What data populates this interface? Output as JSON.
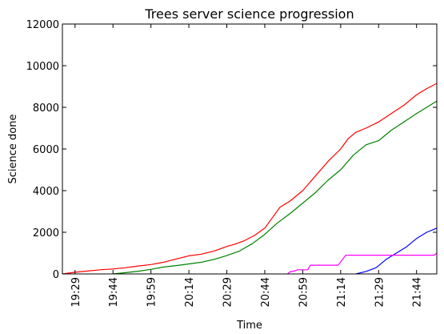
{
  "chart_data": {
    "type": "line",
    "title": "Trees server science progression",
    "xlabel": "Time",
    "ylabel": "Science done",
    "ylim": [
      0,
      12000
    ],
    "yticks": [
      0,
      2000,
      4000,
      6000,
      8000,
      10000,
      12000
    ],
    "xlim": [
      "19:24",
      "21:52"
    ],
    "xticks": [
      "19:29",
      "19:44",
      "19:59",
      "20:14",
      "20:29",
      "20:44",
      "20:59",
      "21:14",
      "21:29",
      "21:44"
    ],
    "grid": false,
    "series": [
      {
        "color": "#ff0000",
        "points": [
          [
            "19:24",
            0
          ],
          [
            "19:29",
            80
          ],
          [
            "19:34",
            140
          ],
          [
            "19:39",
            200
          ],
          [
            "19:44",
            240
          ],
          [
            "19:49",
            300
          ],
          [
            "19:54",
            380
          ],
          [
            "19:59",
            450
          ],
          [
            "20:04",
            560
          ],
          [
            "20:09",
            720
          ],
          [
            "20:14",
            870
          ],
          [
            "20:19",
            950
          ],
          [
            "20:24",
            1100
          ],
          [
            "20:29",
            1320
          ],
          [
            "20:32",
            1420
          ],
          [
            "20:36",
            1600
          ],
          [
            "20:40",
            1850
          ],
          [
            "20:44",
            2200
          ],
          [
            "20:47",
            2700
          ],
          [
            "20:50",
            3200
          ],
          [
            "20:54",
            3500
          ],
          [
            "20:59",
            4000
          ],
          [
            "21:04",
            4700
          ],
          [
            "21:09",
            5400
          ],
          [
            "21:14",
            6000
          ],
          [
            "21:17",
            6500
          ],
          [
            "21:20",
            6800
          ],
          [
            "21:24",
            7000
          ],
          [
            "21:29",
            7300
          ],
          [
            "21:34",
            7700
          ],
          [
            "21:39",
            8100
          ],
          [
            "21:44",
            8600
          ],
          [
            "21:48",
            8900
          ],
          [
            "21:52",
            9150
          ]
        ]
      },
      {
        "color": "#008000",
        "points": [
          [
            "19:44",
            0
          ],
          [
            "19:49",
            60
          ],
          [
            "19:54",
            130
          ],
          [
            "19:59",
            220
          ],
          [
            "20:04",
            330
          ],
          [
            "20:09",
            400
          ],
          [
            "20:14",
            480
          ],
          [
            "20:19",
            560
          ],
          [
            "20:24",
            700
          ],
          [
            "20:29",
            880
          ],
          [
            "20:34",
            1100
          ],
          [
            "20:39",
            1450
          ],
          [
            "20:44",
            1900
          ],
          [
            "20:49",
            2450
          ],
          [
            "20:54",
            2900
          ],
          [
            "20:59",
            3400
          ],
          [
            "21:04",
            3900
          ],
          [
            "21:09",
            4500
          ],
          [
            "21:14",
            5000
          ],
          [
            "21:19",
            5700
          ],
          [
            "21:24",
            6200
          ],
          [
            "21:29",
            6400
          ],
          [
            "21:34",
            6900
          ],
          [
            "21:39",
            7300
          ],
          [
            "21:44",
            7700
          ],
          [
            "21:48",
            8000
          ],
          [
            "21:52",
            8300
          ]
        ]
      },
      {
        "color": "#0000ff",
        "points": [
          [
            "21:20",
            0
          ],
          [
            "21:24",
            120
          ],
          [
            "21:28",
            300
          ],
          [
            "21:32",
            700
          ],
          [
            "21:36",
            1000
          ],
          [
            "21:40",
            1300
          ],
          [
            "21:44",
            1700
          ],
          [
            "21:48",
            2000
          ],
          [
            "21:52",
            2200
          ]
        ]
      },
      {
        "color": "#ff00ff",
        "points": [
          [
            "20:53",
            0
          ],
          [
            "20:54",
            100
          ],
          [
            "20:56",
            150
          ],
          [
            "20:57",
            200
          ],
          [
            "21:01",
            200
          ],
          [
            "21:02",
            420
          ],
          [
            "21:13",
            420
          ],
          [
            "21:16",
            900
          ],
          [
            "21:51",
            900
          ],
          [
            "21:52",
            1000
          ]
        ]
      }
    ]
  }
}
